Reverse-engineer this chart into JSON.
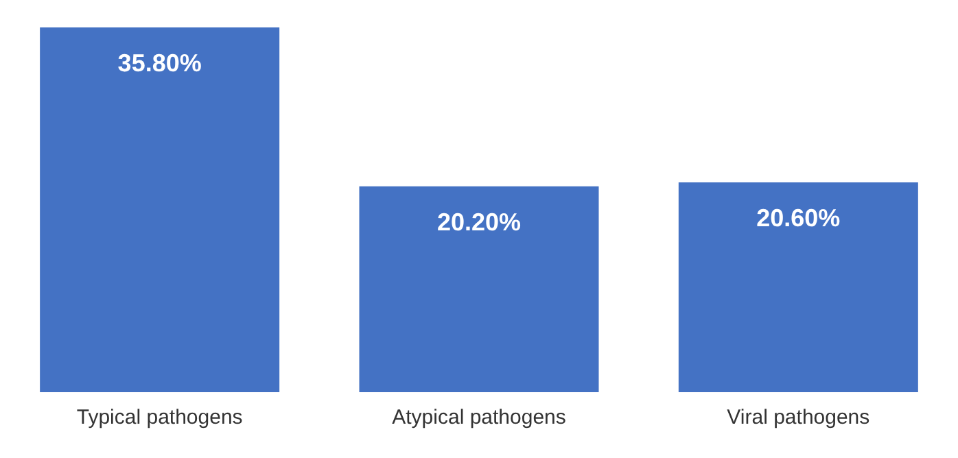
{
  "chart_data": {
    "type": "bar",
    "categories": [
      "Typical pathogens",
      "Atypical pathogens",
      "Viral pathogens"
    ],
    "values": [
      35.8,
      20.2,
      20.6
    ],
    "value_labels": [
      "35.80%",
      "20.20%",
      "20.60%"
    ],
    "color": "#4472c4",
    "ylim": [
      0,
      35.8
    ],
    "grid": false,
    "legend": false
  }
}
